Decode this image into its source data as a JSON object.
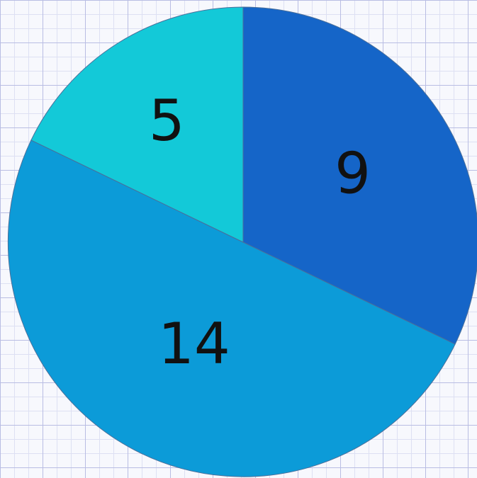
{
  "chart_data": {
    "type": "pie",
    "title": "",
    "slices": [
      {
        "label": "9",
        "value": 9,
        "color": "#1565c8"
      },
      {
        "label": "14",
        "value": 14,
        "color": "#0c9bd8"
      },
      {
        "label": "5",
        "value": 5,
        "color": "#13c9d8"
      }
    ],
    "start_angle_deg": 0,
    "direction": "clockwise",
    "background": "grid-paper"
  }
}
